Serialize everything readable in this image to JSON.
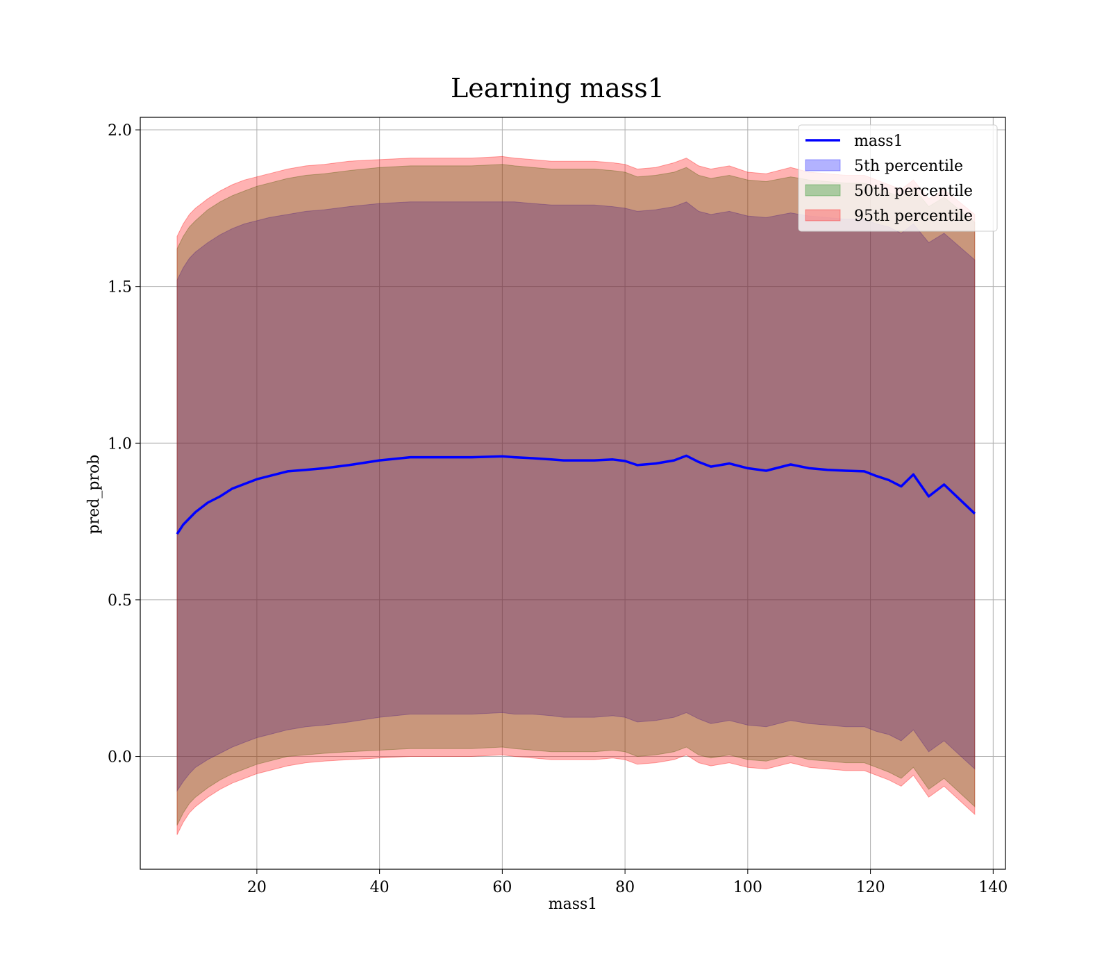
{
  "chart_data": {
    "type": "line",
    "title": "Learning mass1",
    "xlabel": "mass1",
    "ylabel": "pred_prob",
    "xlim": [
      1,
      142
    ],
    "ylim": [
      -0.36,
      2.04
    ],
    "xticks": [
      20,
      40,
      60,
      80,
      100,
      120,
      140
    ],
    "yticks": [
      0.0,
      0.5,
      1.0,
      1.5,
      2.0
    ],
    "ytick_labels": [
      "0.0",
      "0.5",
      "1.0",
      "1.5",
      "2.0"
    ],
    "grid": true,
    "legend_position": "top-right",
    "x": [
      7,
      8,
      9,
      10,
      12,
      14,
      16,
      18,
      20,
      22,
      25,
      28,
      31,
      35,
      40,
      45,
      50,
      55,
      60,
      62,
      65,
      68,
      70,
      75,
      78,
      80,
      82,
      85,
      88,
      90,
      92,
      94,
      97,
      100,
      103,
      107,
      110,
      113,
      116,
      119,
      121,
      123,
      125,
      127,
      129.5,
      132,
      137
    ],
    "series": [
      {
        "name": "mass1",
        "kind": "line",
        "color": "#0000ff",
        "values": [
          0.71,
          0.74,
          0.76,
          0.78,
          0.81,
          0.83,
          0.855,
          0.87,
          0.885,
          0.895,
          0.91,
          0.915,
          0.92,
          0.93,
          0.945,
          0.955,
          0.955,
          0.955,
          0.958,
          0.955,
          0.952,
          0.948,
          0.945,
          0.945,
          0.948,
          0.943,
          0.93,
          0.935,
          0.945,
          0.96,
          0.94,
          0.925,
          0.935,
          0.92,
          0.912,
          0.932,
          0.92,
          0.915,
          0.912,
          0.91,
          0.895,
          0.882,
          0.862,
          0.9,
          0.83,
          0.868,
          0.775
        ]
      },
      {
        "name": "5th percentile",
        "kind": "band",
        "color": "#0000ff",
        "upper": [
          1.52,
          1.56,
          1.59,
          1.61,
          1.64,
          1.665,
          1.685,
          1.7,
          1.71,
          1.72,
          1.73,
          1.74,
          1.745,
          1.755,
          1.765,
          1.77,
          1.77,
          1.77,
          1.77,
          1.77,
          1.765,
          1.76,
          1.76,
          1.76,
          1.755,
          1.75,
          1.74,
          1.745,
          1.755,
          1.77,
          1.74,
          1.73,
          1.74,
          1.725,
          1.72,
          1.735,
          1.725,
          1.72,
          1.715,
          1.715,
          1.7,
          1.69,
          1.67,
          1.7,
          1.64,
          1.67,
          1.585
        ],
        "lower": [
          -0.11,
          -0.08,
          -0.055,
          -0.035,
          -0.01,
          0.01,
          0.03,
          0.045,
          0.06,
          0.07,
          0.085,
          0.095,
          0.1,
          0.11,
          0.125,
          0.135,
          0.135,
          0.135,
          0.14,
          0.135,
          0.135,
          0.13,
          0.125,
          0.125,
          0.13,
          0.125,
          0.11,
          0.115,
          0.125,
          0.14,
          0.12,
          0.105,
          0.115,
          0.1,
          0.095,
          0.115,
          0.105,
          0.1,
          0.095,
          0.095,
          0.08,
          0.07,
          0.05,
          0.085,
          0.015,
          0.05,
          -0.04
        ]
      },
      {
        "name": "50th percentile",
        "kind": "band",
        "color": "#008000",
        "upper": [
          1.62,
          1.66,
          1.69,
          1.71,
          1.745,
          1.77,
          1.79,
          1.805,
          1.82,
          1.83,
          1.845,
          1.855,
          1.86,
          1.87,
          1.88,
          1.885,
          1.885,
          1.885,
          1.89,
          1.885,
          1.88,
          1.875,
          1.875,
          1.875,
          1.87,
          1.865,
          1.85,
          1.855,
          1.865,
          1.88,
          1.855,
          1.845,
          1.855,
          1.84,
          1.835,
          1.85,
          1.84,
          1.835,
          1.83,
          1.83,
          1.815,
          1.8,
          1.785,
          1.815,
          1.755,
          1.785,
          1.705
        ],
        "lower": [
          -0.22,
          -0.18,
          -0.15,
          -0.13,
          -0.1,
          -0.075,
          -0.055,
          -0.04,
          -0.025,
          -0.015,
          0.0,
          0.005,
          0.01,
          0.015,
          0.02,
          0.025,
          0.025,
          0.025,
          0.03,
          0.025,
          0.02,
          0.015,
          0.015,
          0.015,
          0.02,
          0.015,
          0.0,
          0.005,
          0.015,
          0.03,
          0.005,
          -0.005,
          0.005,
          -0.01,
          -0.015,
          0.005,
          -0.01,
          -0.015,
          -0.02,
          -0.02,
          -0.035,
          -0.05,
          -0.07,
          -0.035,
          -0.105,
          -0.07,
          -0.16
        ]
      },
      {
        "name": "95th percentile",
        "kind": "band",
        "color": "#ff0000",
        "upper": [
          1.66,
          1.7,
          1.73,
          1.75,
          1.78,
          1.805,
          1.825,
          1.84,
          1.85,
          1.86,
          1.875,
          1.885,
          1.89,
          1.9,
          1.905,
          1.91,
          1.91,
          1.91,
          1.915,
          1.91,
          1.905,
          1.9,
          1.9,
          1.9,
          1.895,
          1.89,
          1.875,
          1.88,
          1.895,
          1.91,
          1.885,
          1.875,
          1.885,
          1.865,
          1.86,
          1.88,
          1.865,
          1.86,
          1.855,
          1.855,
          1.84,
          1.825,
          1.81,
          1.84,
          1.78,
          1.81,
          1.73
        ],
        "lower": [
          -0.25,
          -0.21,
          -0.18,
          -0.16,
          -0.13,
          -0.105,
          -0.085,
          -0.07,
          -0.055,
          -0.045,
          -0.03,
          -0.02,
          -0.015,
          -0.01,
          -0.005,
          0.0,
          0.0,
          0.0,
          0.005,
          0.0,
          -0.005,
          -0.01,
          -0.01,
          -0.01,
          -0.005,
          -0.01,
          -0.025,
          -0.02,
          -0.01,
          0.005,
          -0.02,
          -0.03,
          -0.02,
          -0.035,
          -0.04,
          -0.02,
          -0.035,
          -0.04,
          -0.045,
          -0.045,
          -0.06,
          -0.075,
          -0.095,
          -0.06,
          -0.13,
          -0.095,
          -0.185
        ]
      }
    ]
  }
}
